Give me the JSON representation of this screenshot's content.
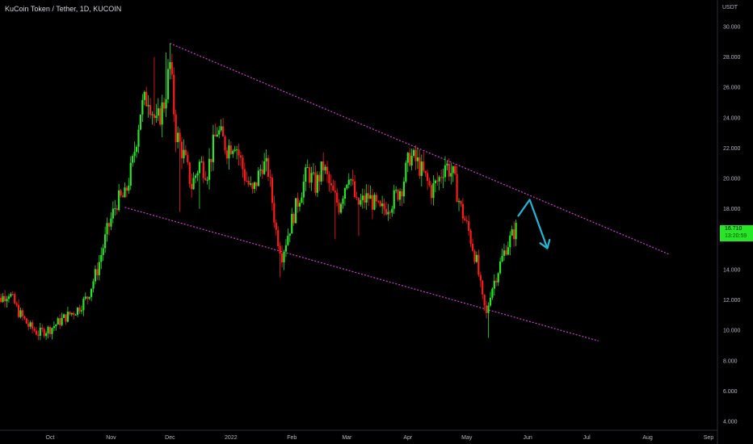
{
  "header": {
    "title": "KuCoin Token / Tether, 1D, KUCOIN",
    "currency": "USDT"
  },
  "price_badge": {
    "price": "16.710",
    "countdown": "13:20:59",
    "color": "#26e626"
  },
  "colors": {
    "up": "#26e626",
    "down": "#ff1a1a",
    "trendline": "#d63ad6",
    "arrow": "#1fb8d6",
    "background": "#000000",
    "text": "#b2b5be"
  },
  "chart_data": {
    "type": "candlestick",
    "title": "KuCoin Token / Tether, 1D, KUCOIN",
    "ylim": [
      3.5,
      31.2
    ],
    "y_ticks": [
      "30.000",
      "28.000",
      "26.000",
      "24.000",
      "22.000",
      "20.000",
      "18.000",
      "16.000",
      "14.000",
      "12.000",
      "10.000",
      "8.000",
      "6.000",
      "4.000"
    ],
    "y_tick_values": [
      30,
      28,
      26,
      24,
      22,
      20,
      18,
      16,
      14,
      12,
      10,
      8,
      6,
      4
    ],
    "x_ticks": [
      {
        "label": "Oct",
        "date": "2021-10-01"
      },
      {
        "label": "Nov",
        "date": "2021-11-01"
      },
      {
        "label": "Dec",
        "date": "2021-12-01"
      },
      {
        "label": "2022",
        "date": "2022-01-01"
      },
      {
        "label": "Feb",
        "date": "2022-02-01"
      },
      {
        "label": "Mar",
        "date": "2022-03-01"
      },
      {
        "label": "Apr",
        "date": "2022-04-01"
      },
      {
        "label": "May",
        "date": "2022-05-01"
      },
      {
        "label": "Jun",
        "date": "2022-06-01"
      },
      {
        "label": "Jul",
        "date": "2022-07-01"
      },
      {
        "label": "Aug",
        "date": "2022-08-01"
      },
      {
        "label": "Sep",
        "date": "2022-09-01"
      }
    ],
    "price_anchors": [
      [
        "2021-09-01",
        14.8
      ],
      [
        "2021-09-05",
        12.0
      ],
      [
        "2021-09-10",
        12.5
      ],
      [
        "2021-09-15",
        11.2
      ],
      [
        "2021-09-20",
        10.3
      ],
      [
        "2021-09-25",
        9.8
      ],
      [
        "2021-10-01",
        10.1
      ],
      [
        "2021-10-08",
        10.8
      ],
      [
        "2021-10-15",
        11.4
      ],
      [
        "2021-10-20",
        12.2
      ],
      [
        "2021-10-25",
        14.0
      ],
      [
        "2021-10-30",
        16.5
      ],
      [
        "2021-11-04",
        18.5
      ],
      [
        "2021-11-08",
        18.8
      ],
      [
        "2021-11-12",
        21.0
      ],
      [
        "2021-11-16",
        24.5
      ],
      [
        "2021-11-20",
        25.5
      ],
      [
        "2021-11-24",
        23.5
      ],
      [
        "2021-11-28",
        25.0
      ],
      [
        "2021-12-01",
        27.5
      ],
      [
        "2021-12-04",
        23.0
      ],
      [
        "2021-12-08",
        21.5
      ],
      [
        "2021-12-12",
        19.5
      ],
      [
        "2021-12-16",
        21.0
      ],
      [
        "2021-12-20",
        20.5
      ],
      [
        "2021-12-25",
        23.2
      ],
      [
        "2021-12-30",
        22.0
      ],
      [
        "2022-01-03",
        22.5
      ],
      [
        "2022-01-08",
        20.2
      ],
      [
        "2022-01-12",
        19.0
      ],
      [
        "2022-01-17",
        21.0
      ],
      [
        "2022-01-20",
        20.5
      ],
      [
        "2022-01-24",
        16.5
      ],
      [
        "2022-01-27",
        15.0
      ],
      [
        "2022-01-31",
        16.8
      ],
      [
        "2022-02-04",
        18.5
      ],
      [
        "2022-02-09",
        20.5
      ],
      [
        "2022-02-13",
        19.5
      ],
      [
        "2022-02-17",
        20.8
      ],
      [
        "2022-02-21",
        19.2
      ],
      [
        "2022-02-25",
        18.2
      ],
      [
        "2022-03-02",
        20.5
      ],
      [
        "2022-03-06",
        18.2
      ],
      [
        "2022-03-12",
        18.8
      ],
      [
        "2022-03-18",
        17.8
      ],
      [
        "2022-03-24",
        18.5
      ],
      [
        "2022-03-29",
        19.5
      ],
      [
        "2022-04-02",
        21.5
      ],
      [
        "2022-04-06",
        21.0
      ],
      [
        "2022-04-10",
        20.0
      ],
      [
        "2022-04-13",
        19.2
      ],
      [
        "2022-04-17",
        20.0
      ],
      [
        "2022-04-20",
        21.0
      ],
      [
        "2022-04-24",
        20.2
      ],
      [
        "2022-04-28",
        18.0
      ],
      [
        "2022-05-02",
        16.5
      ],
      [
        "2022-05-06",
        14.5
      ],
      [
        "2022-05-09",
        12.0
      ],
      [
        "2022-05-11",
        11.0
      ],
      [
        "2022-05-13",
        12.5
      ],
      [
        "2022-05-17",
        14.0
      ],
      [
        "2022-05-21",
        15.5
      ],
      [
        "2022-05-26",
        16.7
      ]
    ],
    "wick_spikes": [
      {
        "date": "2021-11-23",
        "high": 28.0
      },
      {
        "date": "2021-11-29",
        "high": 28.3
      },
      {
        "date": "2021-12-01",
        "high": 28.9
      },
      {
        "date": "2021-12-06",
        "low": 17.8
      },
      {
        "date": "2021-12-16",
        "low": 18.0
      },
      {
        "date": "2022-01-26",
        "low": 13.5
      },
      {
        "date": "2022-02-23",
        "low": 16.0
      },
      {
        "date": "2022-03-07",
        "low": 16.2
      },
      {
        "date": "2022-05-12",
        "low": 9.5
      }
    ],
    "trendlines": [
      {
        "name": "upper",
        "start": [
          "2021-12-01",
          28.9
        ],
        "end": [
          "2022-08-12",
          15.0
        ]
      },
      {
        "name": "lower",
        "start": [
          "2021-11-08",
          18.1
        ],
        "end": [
          "2022-07-07",
          9.3
        ]
      }
    ],
    "projection_arrow": [
      [
        "2022-05-27",
        17.5
      ],
      [
        "2022-06-02",
        18.6
      ],
      [
        "2022-06-11",
        15.4
      ]
    ]
  }
}
